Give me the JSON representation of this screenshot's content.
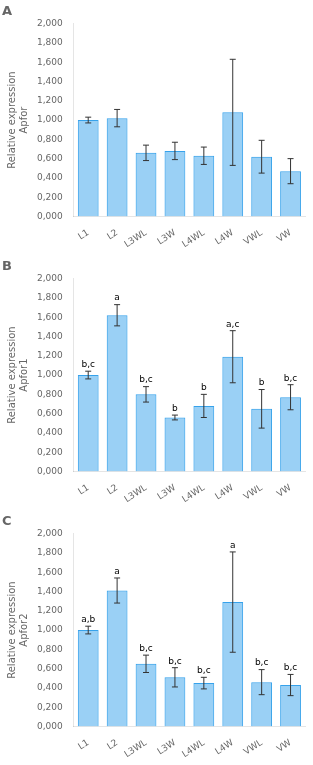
{
  "chart_data": [
    {
      "type": "bar",
      "title": "A",
      "ylabel": [
        "Relative expression",
        "Apfor"
      ],
      "categories": [
        "L1",
        "L2",
        "L3WL",
        "L3W",
        "L4WL",
        "L4W",
        "VWL",
        "VW"
      ],
      "values": [
        1.0,
        1.02,
        0.66,
        0.68,
        0.63,
        1.08,
        0.62,
        0.47
      ],
      "errors": [
        0.03,
        0.09,
        0.08,
        0.09,
        0.09,
        0.55,
        0.17,
        0.13
      ],
      "ylim": [
        0,
        2.0
      ],
      "yticks": [
        {
          "value": 0.0,
          "label": "0,000"
        },
        {
          "value": 0.2,
          "label": "0,200"
        },
        {
          "value": 0.4,
          "label": "0,400"
        },
        {
          "value": 0.6,
          "label": "0,600"
        },
        {
          "value": 0.8,
          "label": "0,800"
        },
        {
          "value": 1.0,
          "label": "1,000"
        },
        {
          "value": 1.2,
          "label": "1,200"
        },
        {
          "value": 1.4,
          "label": "1,400"
        },
        {
          "value": 1.6,
          "label": "1,600"
        },
        {
          "value": 1.8,
          "label": "1,800"
        },
        {
          "value": 2.0,
          "label": "2,000"
        }
      ],
      "grid": false
    },
    {
      "type": "bar",
      "title": "B",
      "ylabel": [
        "Relative expression",
        "Apfor1"
      ],
      "categories": [
        "L1",
        "L2",
        "L3WL",
        "L3W",
        "L4WL",
        "L4W",
        "VWL",
        "VW"
      ],
      "values": [
        1.0,
        1.62,
        0.8,
        0.56,
        0.68,
        1.19,
        0.65,
        0.77
      ],
      "errors": [
        0.04,
        0.11,
        0.08,
        0.025,
        0.12,
        0.27,
        0.2,
        0.13
      ],
      "annotations": [
        "b,c",
        "a",
        "b,c",
        "b",
        "b",
        "a,c",
        "b",
        "b,c"
      ],
      "ylim": [
        0,
        2.0
      ],
      "yticks": [
        {
          "value": 0.0,
          "label": "0,000"
        },
        {
          "value": 0.2,
          "label": "0,200"
        },
        {
          "value": 0.4,
          "label": "0,400"
        },
        {
          "value": 0.6,
          "label": "0,600"
        },
        {
          "value": 0.8,
          "label": "0,800"
        },
        {
          "value": 1.0,
          "label": "1,000"
        },
        {
          "value": 1.2,
          "label": "1,200"
        },
        {
          "value": 1.4,
          "label": "1,400"
        },
        {
          "value": 1.6,
          "label": "1,600"
        },
        {
          "value": 1.8,
          "label": "1,800"
        },
        {
          "value": 2.0,
          "label": "2,000"
        }
      ],
      "grid": false
    },
    {
      "type": "bar",
      "title": "C",
      "ylabel": [
        "Relative expression",
        "Apfor2"
      ],
      "categories": [
        "L1",
        "L2",
        "L3WL",
        "L3W",
        "L4WL",
        "L4W",
        "VWL",
        "VW"
      ],
      "values": [
        1.0,
        1.41,
        0.65,
        0.51,
        0.45,
        1.29,
        0.46,
        0.43
      ],
      "errors": [
        0.04,
        0.13,
        0.09,
        0.1,
        0.06,
        0.52,
        0.13,
        0.11
      ],
      "annotations": [
        "a,b",
        "a",
        "b,c",
        "b,c",
        "b,c",
        "a",
        "b,c",
        "b,c"
      ],
      "ylim": [
        0,
        2.0
      ],
      "yticks": [
        {
          "value": 0.0,
          "label": "0,000"
        },
        {
          "value": 0.2,
          "label": "0,200"
        },
        {
          "value": 0.4,
          "label": "0,400"
        },
        {
          "value": 0.6,
          "label": "0,600"
        },
        {
          "value": 0.8,
          "label": "0,800"
        },
        {
          "value": 1.0,
          "label": "1,000"
        },
        {
          "value": 1.2,
          "label": "1,200"
        },
        {
          "value": 1.4,
          "label": "1,400"
        },
        {
          "value": 1.6,
          "label": "1,600"
        },
        {
          "value": 1.8,
          "label": "1,800"
        },
        {
          "value": 2.0,
          "label": "2,000"
        }
      ],
      "grid": false
    }
  ]
}
